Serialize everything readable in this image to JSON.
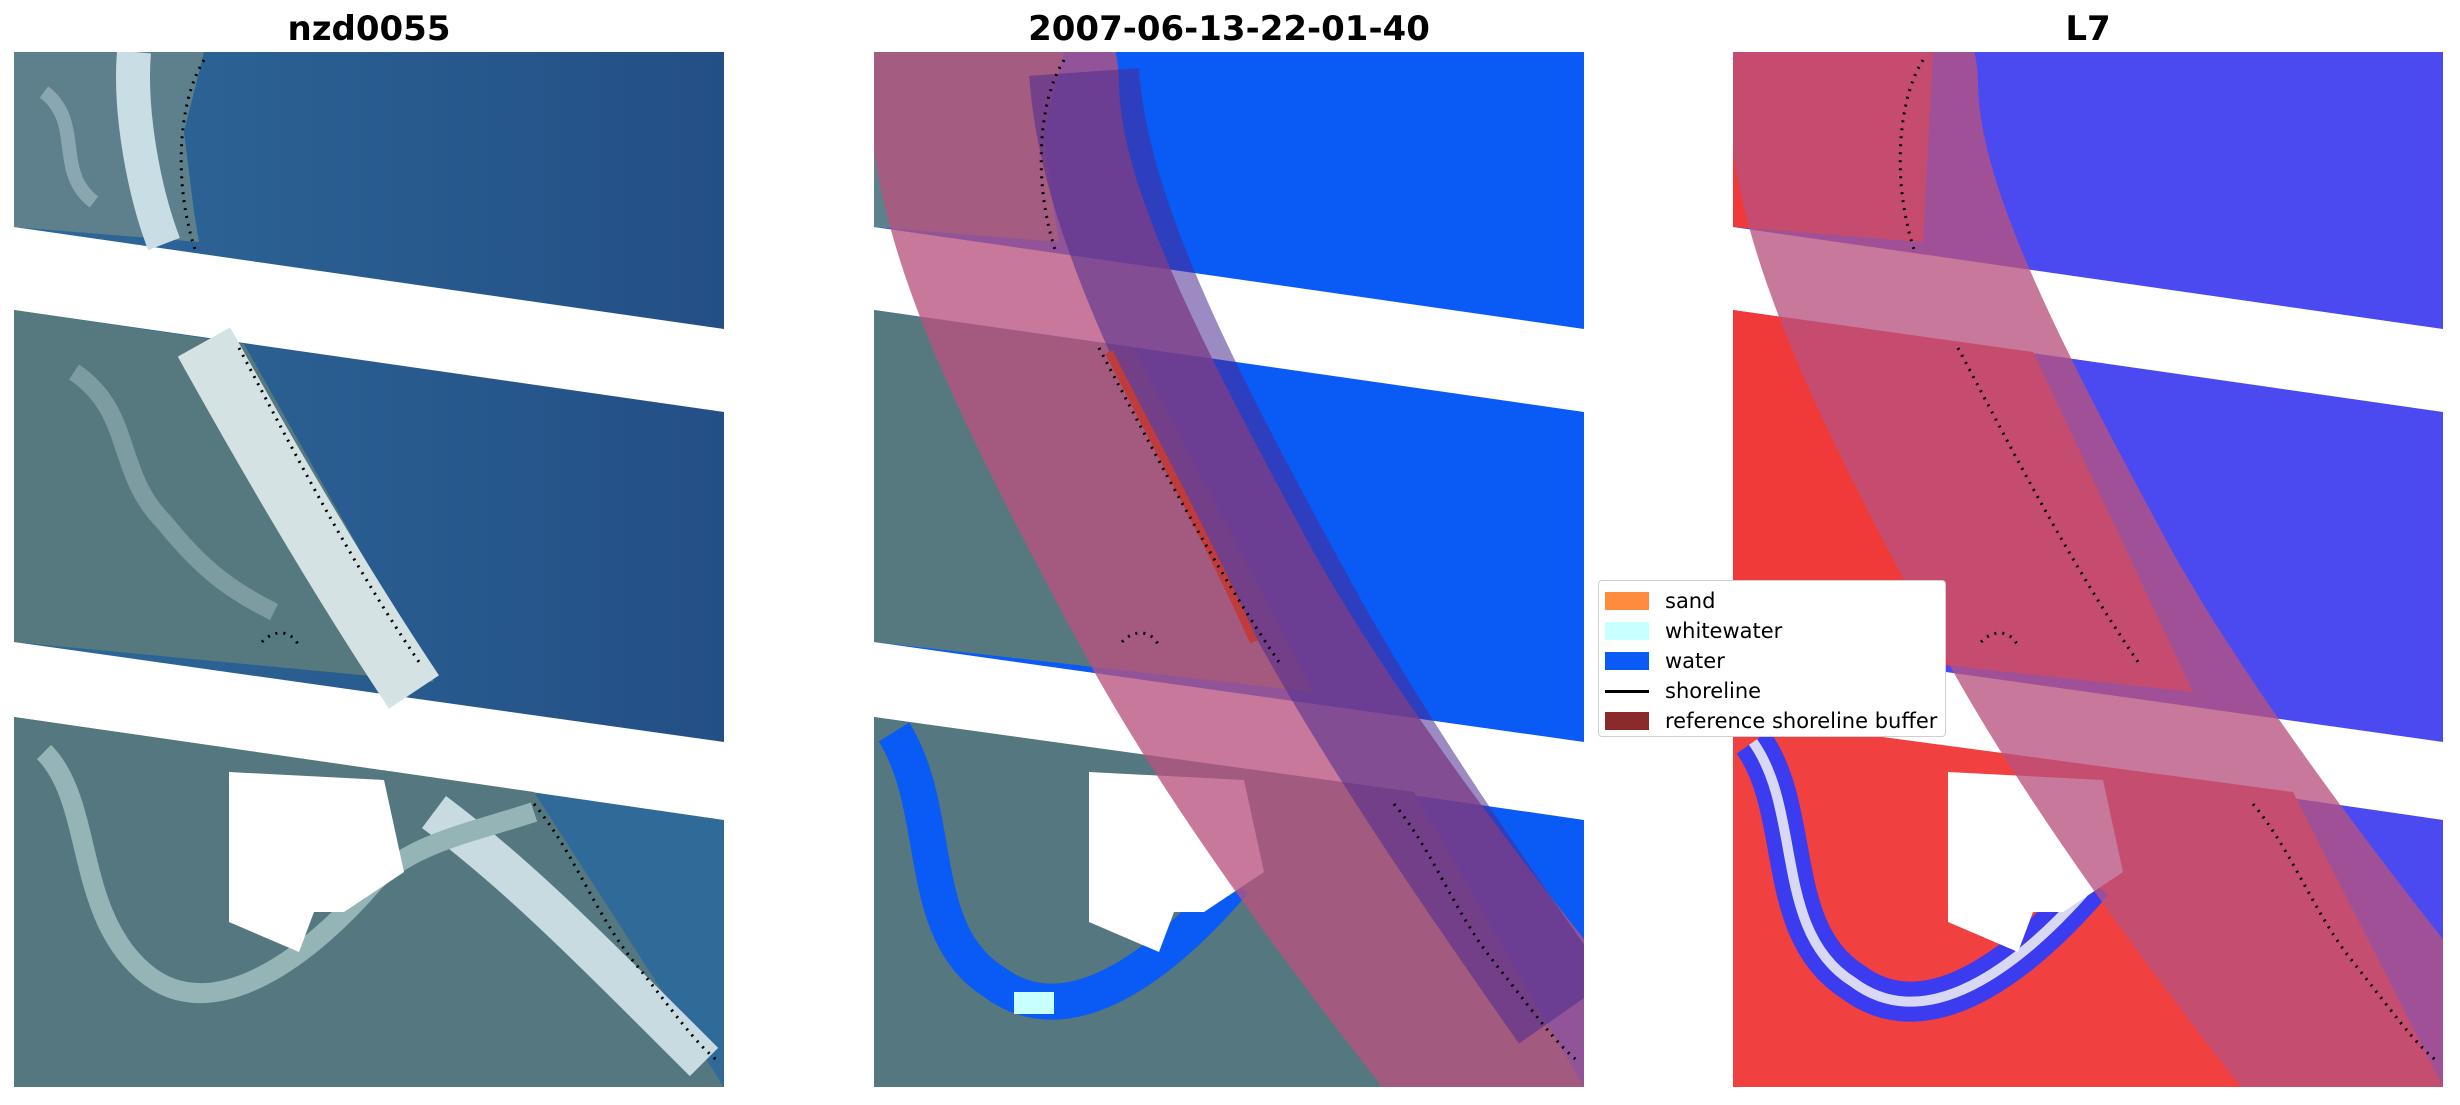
{
  "panels": [
    {
      "title": "nzd0055"
    },
    {
      "title": "2007-06-13-22-01-40"
    },
    {
      "title": "L7"
    }
  ],
  "legend": {
    "items": [
      {
        "label": "sand",
        "color": "#ff8c3c",
        "kind": "patch"
      },
      {
        "label": "whitewater",
        "color": "#c8ffff",
        "kind": "patch"
      },
      {
        "label": "water",
        "color": "#0a5af5",
        "kind": "patch"
      },
      {
        "label": "shoreline",
        "color": "#000000",
        "kind": "line"
      },
      {
        "label": "reference shoreline buffer",
        "color": "#8b2a2a",
        "kind": "patch"
      }
    ]
  },
  "colors": {
    "imagery_water": "#2f6a99",
    "imagery_land": "#5f7f8a",
    "imagery_beach": "#c9dde2",
    "classified_water": "#0a5af5",
    "buffer_overlay": "#b8527d",
    "index_water": "#3b3bf0",
    "index_land": "#f03030"
  }
}
